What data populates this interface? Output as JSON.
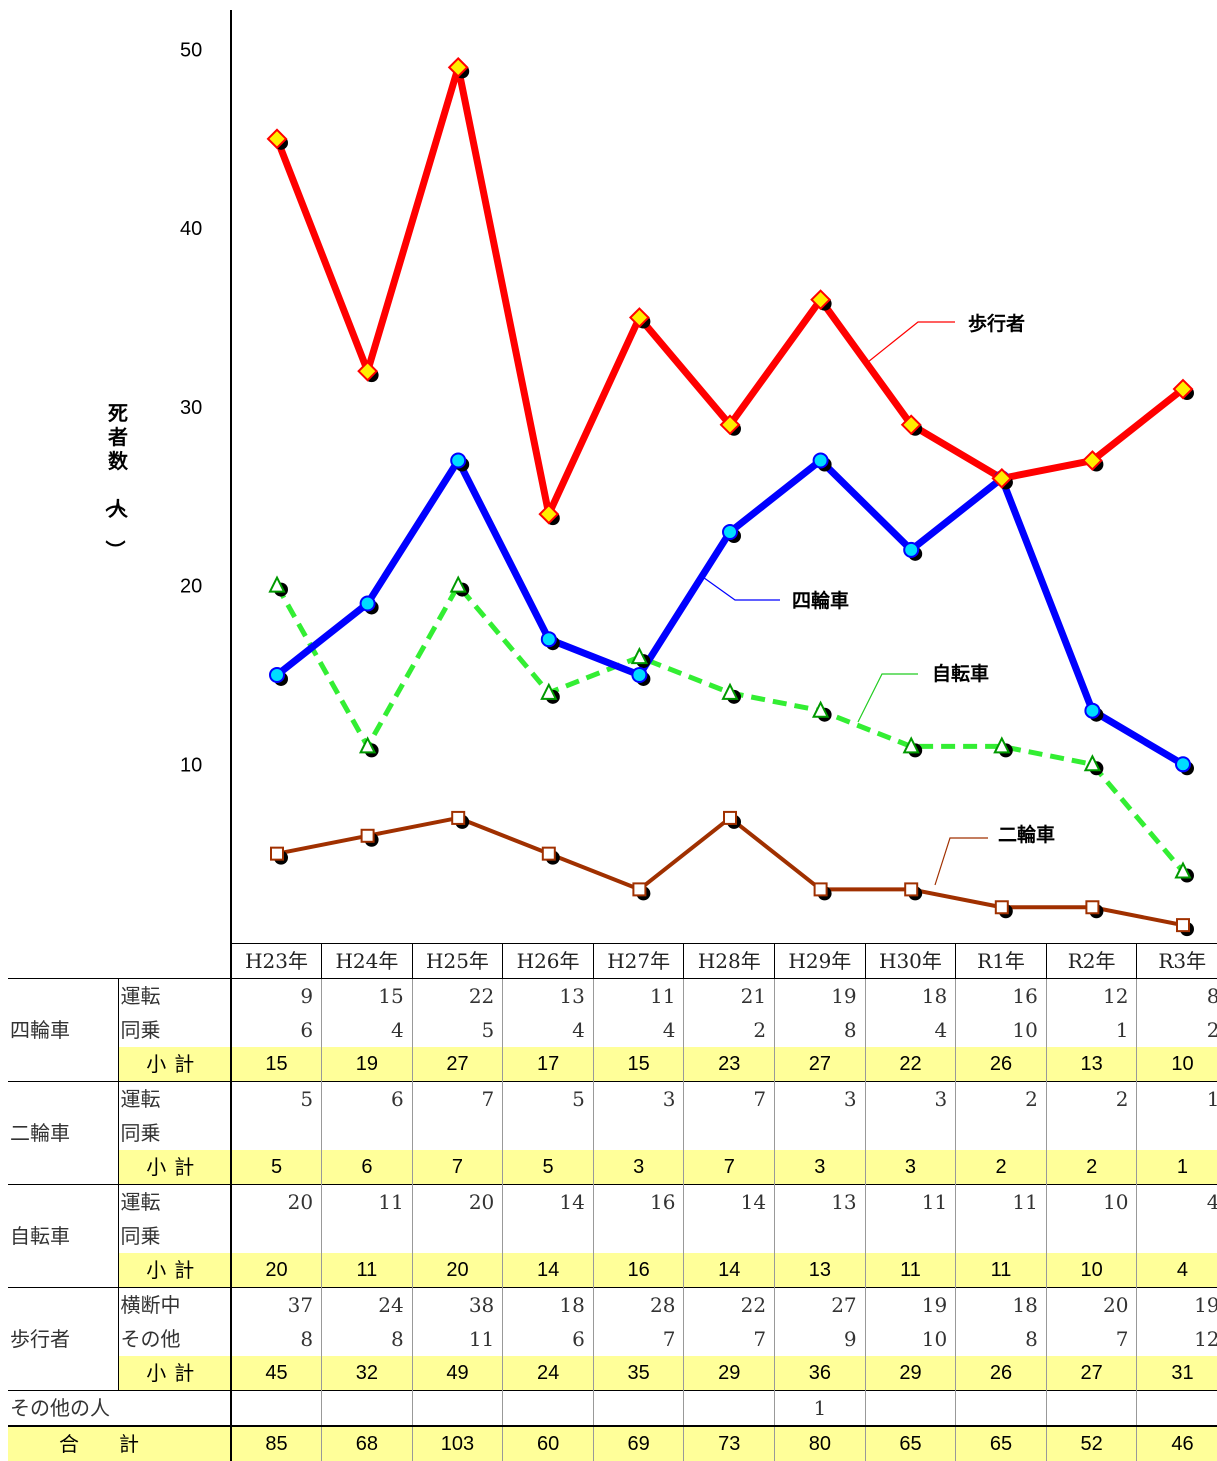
{
  "chart_data": {
    "type": "line",
    "categories": [
      "H23年",
      "H24年",
      "H25年",
      "H26年",
      "H27年",
      "H28年",
      "H29年",
      "H30年",
      "R1年",
      "R2年",
      "R3年"
    ],
    "ylabel": "死者数（人）",
    "ylim": [
      0,
      50
    ],
    "yticks": [
      10,
      20,
      30,
      40,
      50
    ],
    "grid": false,
    "series": [
      {
        "name": "歩行者",
        "values": [
          45,
          32,
          49,
          24,
          35,
          29,
          36,
          29,
          26,
          27,
          31
        ],
        "color": "#ff0000",
        "marker": "diamond",
        "dash": false
      },
      {
        "name": "四輪車",
        "values": [
          15,
          19,
          27,
          17,
          15,
          23,
          27,
          22,
          26,
          13,
          10
        ],
        "color": "#0000ff",
        "marker": "circle",
        "dash": false
      },
      {
        "name": "自転車",
        "values": [
          20,
          11,
          20,
          14,
          16,
          14,
          13,
          11,
          11,
          10,
          4
        ],
        "color": "#33ee33",
        "marker": "triangle",
        "dash": true
      },
      {
        "name": "二輪車",
        "values": [
          5,
          6,
          7,
          5,
          3,
          7,
          3,
          3,
          2,
          2,
          1
        ],
        "color": "#a03000",
        "marker": "square",
        "dash": false
      }
    ]
  },
  "table": {
    "groups": [
      {
        "name": "四輪車",
        "rows": [
          {
            "label": "運転",
            "values": [
              "9",
              "15",
              "22",
              "13",
              "11",
              "21",
              "19",
              "18",
              "16",
              "12",
              "8"
            ]
          },
          {
            "label": "同乗",
            "values": [
              "6",
              "4",
              "5",
              "4",
              "4",
              "2",
              "8",
              "4",
              "10",
              "1",
              "2"
            ]
          }
        ],
        "subtotal": [
          "15",
          "19",
          "27",
          "17",
          "15",
          "23",
          "27",
          "22",
          "26",
          "13",
          "10"
        ]
      },
      {
        "name": "二輪車",
        "rows": [
          {
            "label": "運転",
            "values": [
              "5",
              "6",
              "7",
              "5",
              "3",
              "7",
              "3",
              "3",
              "2",
              "2",
              "1"
            ]
          },
          {
            "label": "同乗",
            "values": [
              "",
              "",
              "",
              "",
              "",
              "",
              "",
              "",
              "",
              "",
              ""
            ]
          }
        ],
        "subtotal": [
          "5",
          "6",
          "7",
          "5",
          "3",
          "7",
          "3",
          "3",
          "2",
          "2",
          "1"
        ]
      },
      {
        "name": "自転車",
        "rows": [
          {
            "label": "運転",
            "values": [
              "20",
              "11",
              "20",
              "14",
              "16",
              "14",
              "13",
              "11",
              "11",
              "10",
              "4"
            ]
          },
          {
            "label": "同乗",
            "values": [
              "",
              "",
              "",
              "",
              "",
              "",
              "",
              "",
              "",
              "",
              ""
            ]
          }
        ],
        "subtotal": [
          "20",
          "11",
          "20",
          "14",
          "16",
          "14",
          "13",
          "11",
          "11",
          "10",
          "4"
        ]
      },
      {
        "name": "歩行者",
        "rows": [
          {
            "label": "横断中",
            "values": [
              "37",
              "24",
              "38",
              "18",
              "28",
              "22",
              "27",
              "19",
              "18",
              "20",
              "19"
            ]
          },
          {
            "label": "その他",
            "values": [
              "8",
              "8",
              "11",
              "6",
              "7",
              "7",
              "9",
              "10",
              "8",
              "7",
              "12"
            ]
          }
        ],
        "subtotal": [
          "45",
          "32",
          "49",
          "24",
          "35",
          "29",
          "36",
          "29",
          "26",
          "27",
          "31"
        ]
      }
    ],
    "subtotal_label": "小計",
    "other_label": "その他の人",
    "other_values": [
      "",
      "",
      "",
      "",
      "",
      "",
      "1",
      "",
      "",
      "",
      ""
    ],
    "total_label": "合計",
    "total_values": [
      "85",
      "68",
      "103",
      "60",
      "69",
      "73",
      "80",
      "65",
      "65",
      "52",
      "46"
    ]
  }
}
